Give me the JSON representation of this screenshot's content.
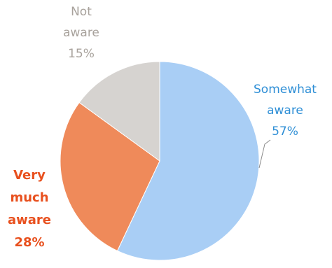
{
  "chart_data": {
    "type": "pie",
    "slices": [
      {
        "label": "Somewhat aware",
        "value": 57,
        "value_label": "57%",
        "color": "#a9cef5",
        "label_color": "#2f8fd6"
      },
      {
        "label": "Very much aware",
        "value": 28,
        "value_label": "28%",
        "color": "#ef8a5a",
        "label_color": "#e8501e"
      },
      {
        "label": "Not aware",
        "value": 15,
        "value_label": "15%",
        "color": "#d6d3d0",
        "label_color": "#a8a29c"
      }
    ],
    "labels": {
      "somewhat": [
        "Somewhat",
        "aware",
        "57%"
      ],
      "very": [
        "Very",
        "much",
        "aware",
        "28%"
      ],
      "not": [
        "Not",
        "aware",
        "15%"
      ]
    },
    "start_angle_deg": 0,
    "direction": "clockwise",
    "legend": "none"
  }
}
